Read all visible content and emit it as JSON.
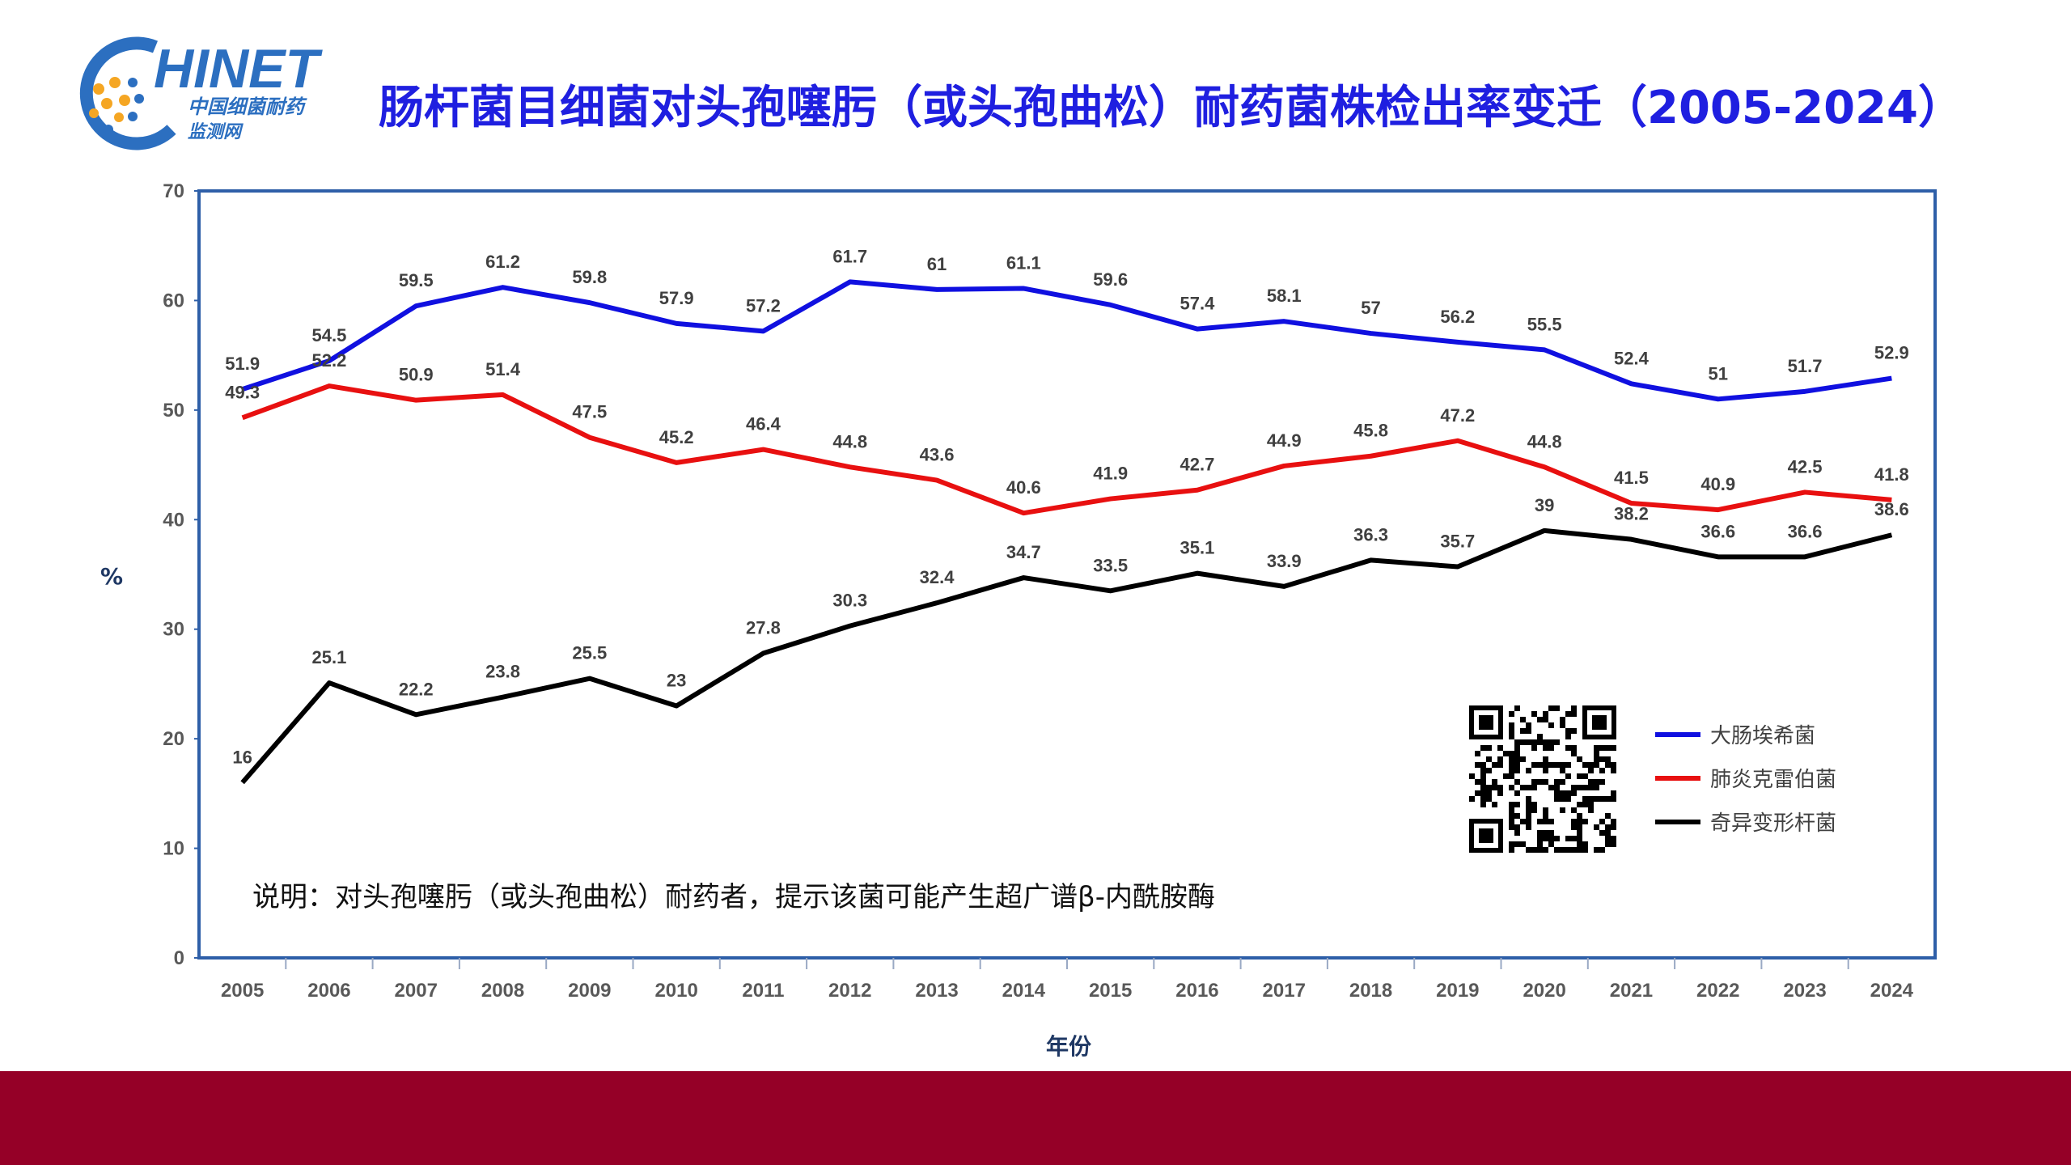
{
  "logo": {
    "brand": "HINET",
    "line1": "中国细菌耐药",
    "line2": "监测网"
  },
  "title": "肠杆菌目细菌对头孢噻肟（或头孢曲松）耐药菌株检出率变迁（2005-2024）",
  "colors": {
    "title": "#1f1fe0",
    "footer": "#950027",
    "axis_frame": "#2e5fa8"
  },
  "chart_data": {
    "type": "line",
    "title": "肠杆菌目细菌对头孢噻肟（或头孢曲松）耐药菌株检出率变迁（2005-2024）",
    "xlabel": "年份",
    "ylabel": "%",
    "ylim": [
      0,
      70
    ],
    "yticks": [
      0,
      10,
      20,
      30,
      40,
      50,
      60,
      70
    ],
    "grid": false,
    "legend_position": "bottom-right",
    "categories": [
      "2005",
      "2006",
      "2007",
      "2008",
      "2009",
      "2010",
      "2011",
      "2012",
      "2013",
      "2014",
      "2015",
      "2016",
      "2017",
      "2018",
      "2019",
      "2020",
      "2021",
      "2022",
      "2023",
      "2024"
    ],
    "series": [
      {
        "name": "大肠埃希菌",
        "color": "#1010e0",
        "values": [
          51.9,
          54.5,
          59.5,
          61.2,
          59.8,
          57.9,
          57.2,
          61.7,
          61,
          61.1,
          59.6,
          57.4,
          58.1,
          57,
          56.2,
          55.5,
          52.4,
          51,
          51.7,
          52.9
        ]
      },
      {
        "name": "肺炎克雷伯菌",
        "color": "#e81010",
        "values": [
          49.3,
          52.2,
          50.9,
          51.4,
          47.5,
          45.2,
          46.4,
          44.8,
          43.6,
          40.6,
          41.9,
          42.7,
          44.9,
          45.8,
          47.2,
          44.8,
          41.5,
          40.9,
          42.5,
          41.8
        ]
      },
      {
        "name": "奇异变形杆菌",
        "color": "#000000",
        "values": [
          16,
          25.1,
          22.2,
          23.8,
          25.5,
          23,
          27.8,
          30.3,
          32.4,
          34.7,
          33.5,
          35.1,
          33.9,
          36.3,
          35.7,
          39,
          38.2,
          36.6,
          36.6,
          38.6
        ]
      }
    ],
    "annotation": "说明：对头孢噻肟（或头孢曲松）耐药者，提示该菌可能产生超广谱β-内酰胺酶"
  }
}
